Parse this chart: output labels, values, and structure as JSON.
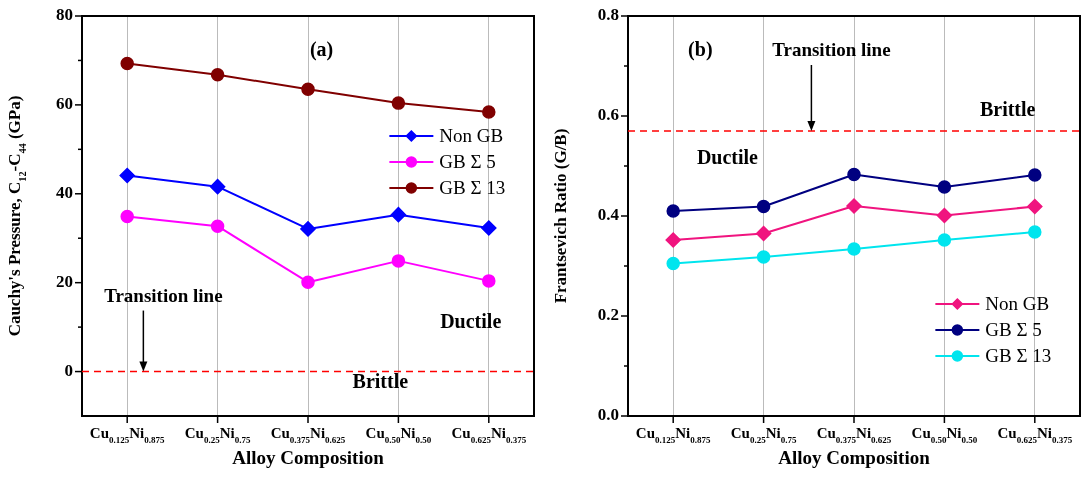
{
  "chart_data": [
    {
      "type": "line",
      "xlabel": "Alloy Composition",
      "ylabel": "Cauchy's Pressure, C$_{12}$-C$_{44}$ (GPa)",
      "categories": [
        "Cu$_{0.125}$Ni$_{0.875}$",
        "Cu$_{0.25}$Ni$_{0.75}$",
        "Cu$_{0.375}$Ni$_{0.625}$",
        "Cu$_{0.50}$Ni$_{0.50}$",
        "Cu$_{0.625}$Ni$_{0.375}$"
      ],
      "series": [
        {
          "name": "Non GB",
          "color": "#0000ff",
          "marker": "diamond",
          "values": [
            44.1,
            41.6,
            32.1,
            35.3,
            32.3
          ]
        },
        {
          "name": "GB Σ 5",
          "color": "#ff00ff",
          "marker": "circle",
          "values": [
            34.9,
            32.7,
            20.1,
            24.9,
            20.4
          ]
        },
        {
          "name": "GB Σ 13",
          "color": "#800000",
          "marker": "circle",
          "values": [
            69.3,
            66.8,
            63.5,
            60.4,
            58.4
          ]
        }
      ],
      "ylim": [
        -10,
        80
      ],
      "yticks": [
        0,
        {
          "value": 10,
          "label": null
        },
        20,
        {
          "value": 30,
          "label": null
        },
        40,
        {
          "value": 50,
          "label": null
        },
        60,
        {
          "value": 70,
          "label": null
        },
        80
      ],
      "ref_lines": [
        {
          "axis": "y",
          "value": 0,
          "label": "Transition line",
          "color": "#ff0000",
          "line_style": "dashed"
        }
      ],
      "annotations": [
        "(a)",
        "Ductile",
        "Brittle"
      ],
      "grid": "x",
      "legend": "right",
      "line_style": "solid"
    },
    {
      "type": "line",
      "xlabel": "Alloy Composition",
      "ylabel": "Frantsevich Ratio (G/B)",
      "categories": [
        "Cu$_{0.125}$Ni$_{0.875}$",
        "Cu$_{0.25}$Ni$_{0.75}$",
        "Cu$_{0.375}$Ni$_{0.625}$",
        "Cu$_{0.50}$Ni$_{0.50}$",
        "Cu$_{0.625}$Ni$_{0.375}$"
      ],
      "series": [
        {
          "name": "Non GB",
          "color": "#f0147f",
          "marker": "diamond",
          "values": [
            0.352,
            0.365,
            0.42,
            0.401,
            0.419
          ]
        },
        {
          "name": "GB Σ 5",
          "color": "#000080",
          "marker": "circle",
          "values": [
            0.41,
            0.419,
            0.483,
            0.458,
            0.482
          ]
        },
        {
          "name": "GB Σ 13",
          "color": "#00e5ee",
          "marker": "circle",
          "values": [
            0.305,
            0.318,
            0.334,
            0.352,
            0.368
          ]
        }
      ],
      "ylim": [
        0,
        0.8
      ],
      "yticks": [
        {
          "value": 0,
          "label": "0.0"
        },
        {
          "value": 0.1,
          "label": null
        },
        0.2,
        {
          "value": 0.3,
          "label": null
        },
        0.4,
        {
          "value": 0.5,
          "label": null
        },
        0.6,
        {
          "value": 0.7,
          "label": null
        },
        0.8
      ],
      "ref_lines": [
        {
          "axis": "y",
          "value": 0.57,
          "label": "Transition line",
          "color": "#ff0000",
          "line_style": "dashed"
        }
      ],
      "annotations": [
        "(b)",
        "Ductile",
        "Brittle"
      ],
      "grid": "x",
      "legend": "bottom right",
      "line_style": "solid"
    }
  ]
}
